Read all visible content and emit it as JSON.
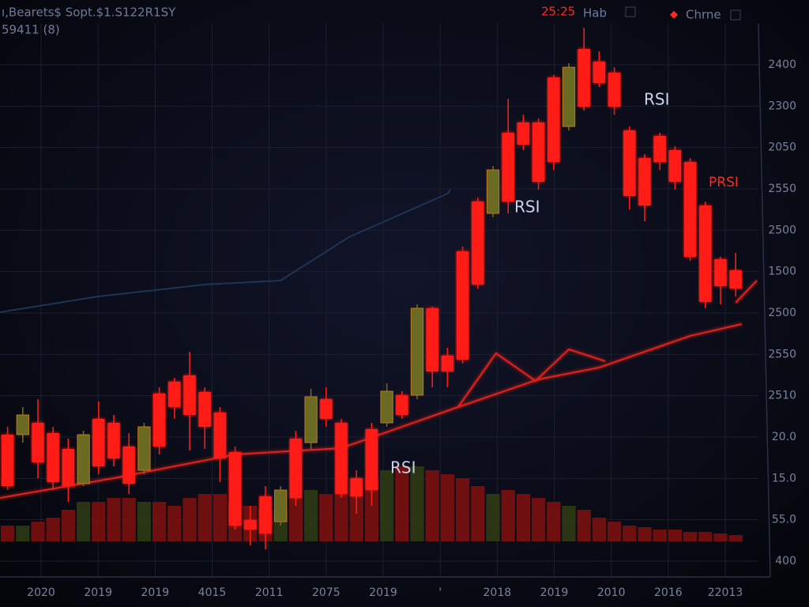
{
  "header": {
    "title": "ı,Bearets$ Sopt.$1.S122R1SY",
    "subtitle": "59411 (8)",
    "clock": "25:25",
    "tab": "Hab",
    "button": "Chrne"
  },
  "chart_data": {
    "type": "candlestick",
    "annotations": [
      "RSI",
      "RSI",
      "RSI",
      "PRSI"
    ],
    "y_axis_labels": [
      "2400",
      "2300",
      "2050",
      "2550",
      "2500",
      "1500",
      "2500",
      "2550",
      "2510",
      "20.0",
      "15.0",
      "55.0",
      "400"
    ],
    "x_axis_labels": [
      "2020",
      "2019",
      "2019",
      "4015",
      "2011",
      "2075",
      "2019",
      "'",
      "2018",
      "2019",
      "2010",
      "2016",
      "22013"
    ],
    "xlim": [
      -0.5,
      49.5
    ],
    "ylim": [
      0,
      670
    ],
    "up_color": "#6b6a22",
    "down_color": "#ff1a12",
    "open": [
      150,
      150,
      165,
      152,
      132,
      88,
      170,
      165,
      135,
      105,
      202,
      217,
      225,
      204,
      178,
      128,
      42,
      72,
      40,
      145,
      140,
      195,
      165,
      95,
      157,
      165,
      200,
      200,
      310,
      250,
      382,
      445,
      430,
      532,
      545,
      545,
      602,
      540,
      638,
      622,
      608,
      535,
      500,
      528,
      510,
      495,
      440,
      372,
      358
    ],
    "high": [
      160,
      185,
      195,
      160,
      145,
      155,
      192,
      175,
      152,
      165,
      210,
      222,
      255,
      210,
      185,
      135,
      60,
      85,
      85,
      155,
      208,
      210,
      170,
      105,
      165,
      215,
      205,
      315,
      312,
      260,
      388,
      450,
      490,
      575,
      555,
      550,
      605,
      620,
      665,
      635,
      615,
      540,
      505,
      532,
      515,
      500,
      445,
      375,
      380
    ],
    "low": [
      80,
      140,
      95,
      80,
      65,
      85,
      100,
      110,
      75,
      100,
      125,
      170,
      130,
      132,
      90,
      30,
      10,
      5,
      35,
      60,
      130,
      160,
      70,
      50,
      60,
      160,
      170,
      195,
      210,
      210,
      240,
      335,
      425,
      430,
      510,
      460,
      485,
      535,
      560,
      590,
      555,
      435,
      420,
      485,
      460,
      370,
      310,
      315,
      325
    ],
    "close": [
      85,
      175,
      115,
      90,
      85,
      150,
      110,
      120,
      88,
      160,
      135,
      185,
      175,
      160,
      120,
      35,
      30,
      25,
      80,
      70,
      198,
      170,
      75,
      72,
      80,
      205,
      175,
      310,
      230,
      230,
      245,
      340,
      485,
      445,
      517,
      470,
      495,
      615,
      565,
      595,
      565,
      452,
      440,
      495,
      470,
      375,
      318,
      338,
      335
    ],
    "volume": [
      20,
      20,
      25,
      30,
      40,
      50,
      50,
      55,
      55,
      50,
      50,
      45,
      55,
      60,
      60,
      50,
      45,
      40,
      40,
      55,
      65,
      60,
      60,
      70,
      80,
      90,
      95,
      95,
      90,
      85,
      80,
      70,
      60,
      65,
      60,
      55,
      50,
      45,
      40,
      30,
      25,
      20,
      18,
      15,
      15,
      12,
      12,
      10,
      8
    ],
    "lines": [
      {
        "color": "#1d3554",
        "x": [
          -0.5,
          6,
          13,
          18,
          22.5,
          29,
          29.2
        ],
        "values": [
          305,
          325,
          340,
          345,
          400,
          455,
          460
        ]
      },
      {
        "color": "#e0201a",
        "x": [
          -0.5,
          7,
          15,
          22,
          29.7,
          35,
          39,
          45,
          48.4
        ],
        "values": [
          70,
          95,
          125,
          133,
          185,
          220,
          235,
          275,
          290
        ]
      },
      {
        "color": "#e0201a",
        "x": [
          29.7,
          32.2,
          34.8,
          37,
          39.4
        ],
        "values": [
          185,
          253,
          218,
          258,
          243
        ]
      },
      {
        "color": "#e0201a",
        "x": [
          48,
          49.4
        ],
        "values": [
          317,
          345
        ]
      }
    ]
  }
}
